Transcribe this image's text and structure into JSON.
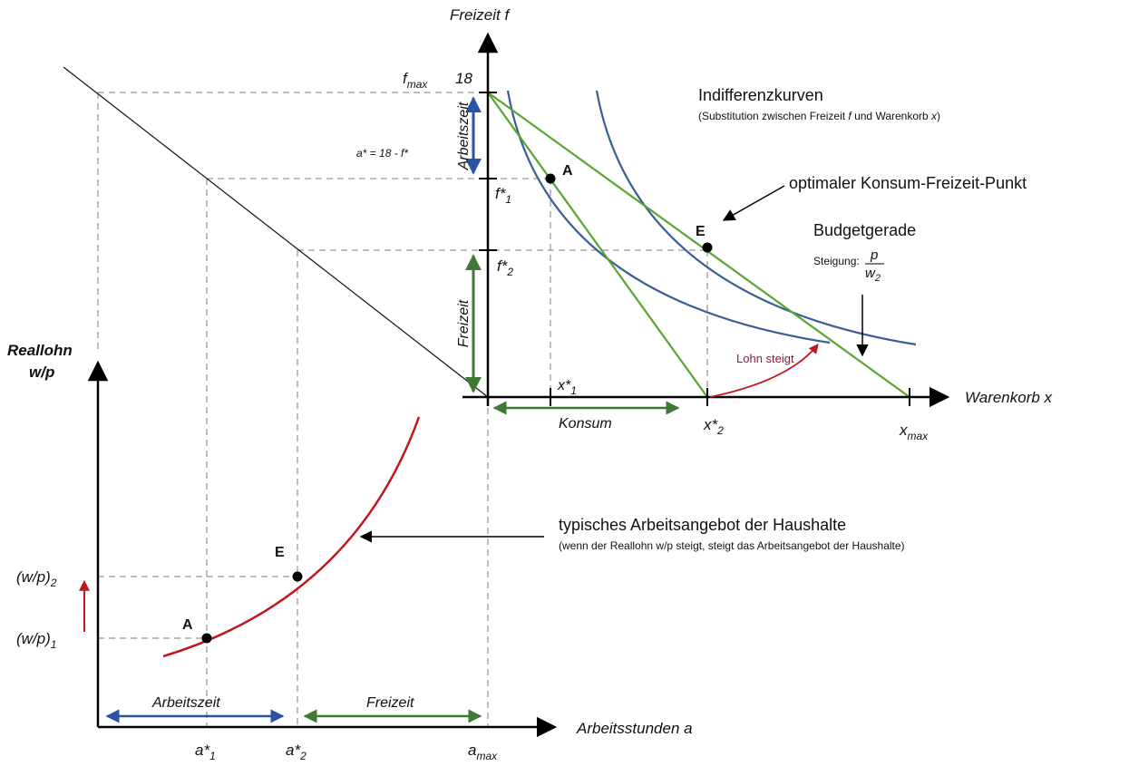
{
  "colors": {
    "axis": "#000000",
    "dashed": "#7f7f7f",
    "indifference": "#3a5f96",
    "budget": "#5aa532",
    "supply": "#c0171e",
    "arbeitszeit_arrow": "#2b53a0",
    "freizeit_arrow": "#3f7a35",
    "lohn_arrow": "#c0171e",
    "lohn_text": "#8b1a3a"
  },
  "upper": {
    "y_axis_label": "Freizeit f",
    "x_axis_label": "Warenkorb x",
    "fmax_label": "f",
    "fmax_sub": "max",
    "fmax_value": "18",
    "f1_label": "f*",
    "f1_sub": "1",
    "f2_label": "f*",
    "f2_sub": "2",
    "x1_label": "x*",
    "x1_sub": "1",
    "x2_label": "x*",
    "x2_sub": "2",
    "xmax_label": "x",
    "xmax_sub": "max",
    "a_formula": "a* = 18 - f*",
    "arbeitszeit_label": "Arbeitszeit",
    "freizeit_label": "Freizeit",
    "konsum_label": "Konsum",
    "point_a": "A",
    "point_e": "E",
    "lohn_steigt": "Lohn steigt"
  },
  "annotations": {
    "indiff_title": "Indifferenzkurven",
    "indiff_sub_1": "(Substitution zwischen Freizeit ",
    "indiff_sub_f": "f",
    "indiff_sub_2": " und Warenkorb ",
    "indiff_sub_x": "x",
    "indiff_sub_3": ")",
    "optimal": "optimaler Konsum-Freizeit-Punkt",
    "budget_title": "Budgetgerade",
    "steigung": "Steigung:",
    "frac_num": "p",
    "frac_den": "w",
    "frac_den_sub": "2",
    "supply_title": "typisches Arbeitsangebot der Haushalte",
    "supply_sub": "(wenn der Reallohn w/p steigt, steigt das Arbeitsangebot der Haushalte)"
  },
  "lower": {
    "y_axis_label_1": "Reallohn",
    "y_axis_label_2": "w/p",
    "x_axis_label": "Arbeitsstunden a",
    "wp2_label": "(w/p)",
    "wp2_sub": "2",
    "wp1_label": "(w/p)",
    "wp1_sub": "1",
    "a1_label": "a*",
    "a1_sub": "1",
    "a2_label": "a*",
    "a2_sub": "2",
    "amax_label": "a",
    "amax_sub": "max",
    "arbeitszeit_label": "Arbeitszeit",
    "freizeit_label": "Freizeit",
    "point_a": "A",
    "point_e": "E"
  }
}
